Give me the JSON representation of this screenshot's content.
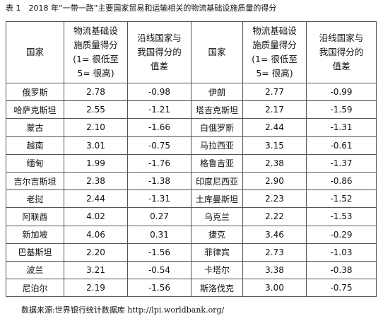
{
  "title": "表 1　2018 年“一带一路”主要国家贸易和运输相关的物流基础设施质量的得分",
  "table": {
    "header": [
      [
        "国家"
      ],
      [
        "物流基础设",
        "施质量得分",
        "(1= 很低至",
        "5= 很高)"
      ],
      [
        "沿线国家与",
        "我国得分的",
        "值差"
      ],
      [
        "国家"
      ],
      [
        "物流基础设",
        "施质量得分",
        "(1= 很低至",
        "5= 很高)"
      ],
      [
        "沿线国家与",
        "我国得分的",
        "值差"
      ]
    ],
    "rows": [
      [
        "俄罗斯",
        "2.78",
        "-0.98",
        "伊朗",
        "2.77",
        "-0.99"
      ],
      [
        "哈萨克斯坦",
        "2.55",
        "-1.21",
        "塔吉克斯坦",
        "2.17",
        "-1.59"
      ],
      [
        "蒙古",
        "2.10",
        "-1.66",
        "白俄罗斯",
        "2.44",
        "-1.31"
      ],
      [
        "越南",
        "3.01",
        "-0.75",
        "马拉西亚",
        "3.15",
        "-0.61"
      ],
      [
        "缅甸",
        "1.99",
        "-1.76",
        "格鲁吉亚",
        "2.38",
        "-1.37"
      ],
      [
        "吉尔吉斯坦",
        "2.38",
        "-1.38",
        "印度尼西亚",
        "2.90",
        "-0.86"
      ],
      [
        "老挝",
        "2.44",
        "-1.31",
        "土库曼斯坦",
        "2.23",
        "-1.52"
      ],
      [
        "阿联酋",
        "4.02",
        "0.27",
        "乌克兰",
        "2.22",
        "-1.53"
      ],
      [
        "新加坡",
        "4.06",
        "0.31",
        "捷克",
        "3.46",
        "-0.29"
      ],
      [
        "巴基斯坦",
        "2.20",
        "-1.56",
        "菲律宾",
        "2.73",
        "-1.03"
      ],
      [
        "波兰",
        "3.21",
        "-0.54",
        "卡塔尔",
        "3.38",
        "-0.38"
      ],
      [
        "尼泊尔",
        "2.19",
        "-1.56",
        "斯洛伐克",
        "3.00",
        "-0.75"
      ]
    ]
  },
  "source": "数据来源:世界银行统计数据库 http://lpi.worldbank.org/"
}
